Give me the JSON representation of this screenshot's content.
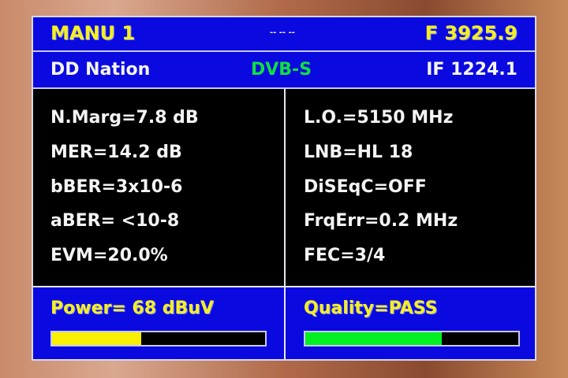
{
  "header": {
    "channel": "MANU 1",
    "indicator": "-- -- --",
    "frequency": "F 3925.9"
  },
  "subheader": {
    "service": "DD Nation",
    "standard": "DVB-S",
    "if_freq": "IF 1224.1"
  },
  "left_params": [
    "N.Marg=7.8 dB",
    "MER=14.2 dB",
    "bBER=3x10-6",
    "aBER= <10-8",
    "EVM=20.0%"
  ],
  "right_params": [
    "L.O.=5150 MHz",
    "LNB=HL 18",
    "DiSEqC=OFF",
    "FrqErr=0.2 MHz",
    "FEC=3/4"
  ],
  "power": {
    "label": "Power= 68 dBuV",
    "level_percent": 42,
    "color": "#f8f000"
  },
  "quality": {
    "label": "Quality=PASS",
    "level_percent": 64,
    "color": "#00f020"
  }
}
